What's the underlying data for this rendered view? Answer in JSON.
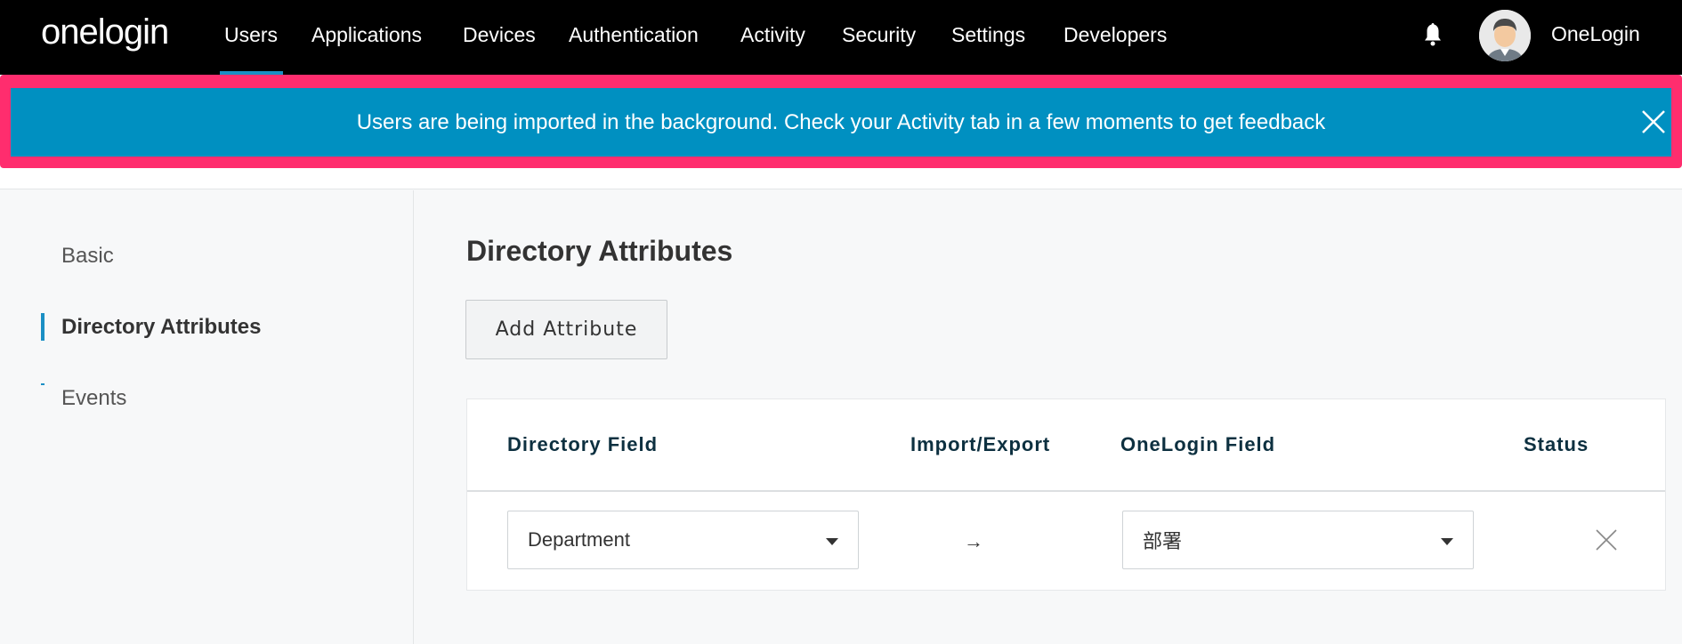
{
  "nav": {
    "logo": "onelogin",
    "items": [
      "Users",
      "Applications",
      "Devices",
      "Authentication",
      "Activity",
      "Security",
      "Settings",
      "Developers"
    ],
    "active": "Users",
    "user_name": "OneLogin"
  },
  "banner": {
    "message": "Users are being imported in the background. Check your Activity tab in a few moments to get feedback",
    "bg_color": "#0090c1",
    "highlight_color": "#ff2d6e"
  },
  "sidebar": {
    "items": [
      {
        "label": "Basic"
      },
      {
        "label": "Directory Attributes",
        "active": true
      },
      {
        "label": "Events"
      }
    ]
  },
  "main": {
    "title": "Directory Attributes",
    "add_button": "Add Attribute",
    "table": {
      "headers": [
        "Directory Field",
        "Import/Export",
        "OneLogin Field",
        "Status"
      ],
      "rows": [
        {
          "directory_field": "Department",
          "direction": "→",
          "onelogin_field": "部署"
        }
      ]
    }
  }
}
